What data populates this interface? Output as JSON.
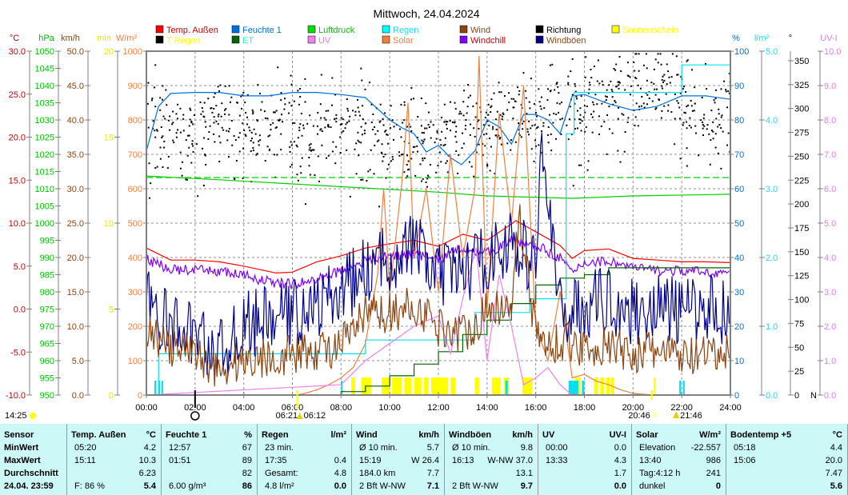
{
  "title": "Mittwoch, 24.04.2024",
  "legend": [
    {
      "label": "Temp. Außen",
      "box": "#ff0000",
      "text": "#cc0000"
    },
    {
      "label": "T Regen",
      "box": "#000000",
      "text": "#ffff00"
    },
    {
      "label": "Feuchte 1",
      "box": "#0070e0",
      "text": "#0070d0"
    },
    {
      "label": "ET",
      "box": "#006400",
      "text": "#30e0e0"
    },
    {
      "label": "Luftdruck",
      "box": "#00e000",
      "text": "#00c000"
    },
    {
      "label": "UV",
      "box": "#f080f0",
      "text": "#e080e0"
    },
    {
      "label": "Regen",
      "box": "#00ffff",
      "text": "#20d8e8"
    },
    {
      "label": "Solar",
      "box": "#f08040",
      "text": "#f08040"
    },
    {
      "label": "Wind",
      "box": "#8b4513",
      "text": "#8b4513"
    },
    {
      "label": "Windchill",
      "box": "#8000ff",
      "text": "#cc0000"
    },
    {
      "label": "Richtung",
      "box": "#000000",
      "text": "#000000"
    },
    {
      "label": "Windböen",
      "box": "#000080",
      "text": "#8b4513"
    },
    {
      "label": "Sonnenschein",
      "box": "#ffff00",
      "text": "#ffff00"
    }
  ],
  "chart_data": {
    "type": "line",
    "title": "Mittwoch, 24.04.2024",
    "x_ticks": [
      "00:00",
      "02:00",
      "04:00",
      "06:00",
      "08:00",
      "10:00",
      "12:00",
      "14:00",
      "16:00",
      "18:00",
      "20:00",
      "22:00",
      "24:00"
    ],
    "xlim_hours": [
      0,
      24
    ],
    "grid": true,
    "axes": {
      "temp": {
        "unit": "°C",
        "color": "#cc0000",
        "range": [
          -10,
          30
        ],
        "ticks": [
          "30.0",
          "25.0",
          "20.0",
          "15.0",
          "10.0",
          "5.0",
          "0.0",
          "-5.0",
          "-10.0"
        ]
      },
      "pressure": {
        "unit": "hPa",
        "color": "#00c000",
        "range": [
          950,
          1050
        ],
        "ticks": [
          "1050",
          "1045",
          "1040",
          "1035",
          "1030",
          "1025",
          "1020",
          "1015",
          "1010",
          "1005",
          "1000",
          "995",
          "990",
          "985",
          "980",
          "975",
          "970",
          "965",
          "960",
          "955",
          "950"
        ]
      },
      "wind": {
        "unit": "km/h",
        "color": "#8b4513",
        "range": [
          0,
          50
        ],
        "ticks": [
          "50.0",
          "45.0",
          "40.0",
          "35.0",
          "30.0",
          "25.0",
          "20.0",
          "15.0",
          "10.0",
          "5.0",
          "0.0"
        ]
      },
      "sunshine": {
        "unit": "min",
        "color": "#e8e800",
        "range": [
          0,
          20
        ],
        "ticks": [
          "20",
          "15",
          "10",
          "5",
          "0"
        ]
      },
      "solar": {
        "unit": "W/m²",
        "color": "#f08040",
        "range": [
          0,
          1000
        ],
        "ticks": [
          "1000",
          "900",
          "800",
          "700",
          "600",
          "500",
          "400",
          "300",
          "200",
          "100",
          "0"
        ]
      },
      "humidity": {
        "unit": "%",
        "color": "#0070d0",
        "range": [
          0,
          100
        ],
        "ticks": [
          "100",
          "90",
          "80",
          "70",
          "60",
          "50",
          "40",
          "30",
          "20",
          "10",
          "0"
        ]
      },
      "rain": {
        "unit": "l/m²",
        "color": "#20d8e8",
        "range": [
          0,
          5
        ],
        "ticks": [
          "5.0",
          "4.0",
          "3.0",
          "2.0",
          "1.0",
          "0.0"
        ]
      },
      "direction": {
        "unit": "°",
        "color": "#000000",
        "range": [
          0,
          360
        ],
        "ticks": [
          "350",
          "325",
          "300",
          "275",
          "250",
          "225",
          "200",
          "175",
          "150",
          "125",
          "100",
          "75",
          "50",
          "25",
          "0"
        ],
        "zero_label": "N"
      },
      "uv": {
        "unit": "UV-I",
        "color": "#e080e0",
        "range": [
          0,
          10
        ],
        "ticks": [
          "10.0",
          "9.0",
          "8.0",
          "7.0",
          "6.0",
          "5.0",
          "4.0",
          "3.0",
          "2.0",
          "1.0",
          "0.0"
        ]
      }
    },
    "series": [
      {
        "name": "Temp. Außen",
        "axis": "temp",
        "color": "#ff0000",
        "x": [
          0,
          1,
          2,
          3,
          4,
          5.33,
          6,
          7,
          8,
          9,
          10,
          11,
          12,
          13,
          14,
          15,
          15.18,
          16,
          17,
          17.5,
          18,
          19,
          20,
          21,
          22,
          23,
          24
        ],
        "values": [
          7.1,
          5.7,
          5.7,
          5.5,
          5.0,
          4.2,
          4.3,
          5.5,
          6.2,
          7.1,
          7.6,
          8.0,
          7.3,
          8.7,
          8.0,
          9.9,
          10.3,
          9.0,
          7.4,
          5.9,
          6.8,
          7.0,
          5.9,
          5.7,
          5.5,
          5.5,
          5.4
        ]
      },
      {
        "name": "Windchill",
        "axis": "temp",
        "color": "#8000ff",
        "noise": 0.6,
        "x": [
          0,
          1,
          2,
          3,
          4,
          5.33,
          6,
          7,
          8,
          9,
          10,
          11,
          12,
          13,
          14,
          15,
          16,
          17,
          17.5,
          18,
          19,
          20,
          21,
          22,
          23,
          24
        ],
        "values": [
          5.8,
          4.6,
          4.5,
          4.4,
          3.9,
          3.0,
          2.9,
          3.4,
          4.5,
          5.6,
          6.2,
          6.4,
          5.8,
          7.2,
          6.5,
          8.0,
          7.4,
          6.0,
          4.2,
          5.4,
          5.6,
          4.8,
          4.5,
          4.4,
          4.3,
          4.2
        ]
      },
      {
        "name": "Feuchte 1",
        "axis": "humidity",
        "color": "#0070e0",
        "x": [
          0,
          0.5,
          1,
          2,
          3,
          4,
          5,
          6,
          7,
          8,
          9,
          10,
          10.5,
          11,
          11.5,
          12,
          12.5,
          12.95,
          13.5,
          14,
          14.5,
          15,
          15.5,
          16,
          16.5,
          17,
          17.5,
          18,
          19,
          20,
          21,
          22,
          23,
          24
        ],
        "values": [
          71,
          84,
          87.7,
          88,
          88,
          87,
          87,
          88,
          88,
          87.4,
          86.5,
          80,
          77.7,
          76,
          70.7,
          72.6,
          69,
          67,
          71,
          80,
          78,
          73,
          81.6,
          81.6,
          80,
          76,
          87,
          87.4,
          84.7,
          82.8,
          84,
          87,
          87,
          86
        ]
      },
      {
        "name": "Luftdruck",
        "axis": "pressure",
        "color": "#00d000",
        "x": [
          0,
          3,
          6,
          9,
          12,
          14,
          17.5,
          20,
          24
        ],
        "values": [
          1013.7,
          1012.6,
          1011.4,
          1010.2,
          1009.0,
          1007.9,
          1007.2,
          1007.9,
          1008.4
        ]
      },
      {
        "name": "Luftdruck Referenz",
        "axis": "pressure",
        "color": "#00d000",
        "dashed": true,
        "x": [
          0,
          24
        ],
        "values": [
          1013.25,
          1013.25
        ]
      },
      {
        "name": "Regen",
        "axis": "rain",
        "color": "#00e0f0",
        "step": true,
        "x": [
          0,
          0.5,
          9,
          13.5,
          15.75,
          17.25,
          17.58,
          22,
          24
        ],
        "values": [
          0,
          0.6,
          0.8,
          1.2,
          1.4,
          3.8,
          4.4,
          4.8,
          4.8
        ]
      },
      {
        "name": "ET",
        "axis": "rain",
        "color": "#006400",
        "step": true,
        "x": [
          0,
          8,
          9,
          10,
          11,
          12,
          13,
          14,
          15,
          16,
          17,
          18,
          19,
          24
        ],
        "values": [
          0,
          0.05,
          0.13,
          0.28,
          0.45,
          0.63,
          0.88,
          1.09,
          1.33,
          1.6,
          1.7,
          1.75,
          1.85,
          1.88
        ]
      },
      {
        "name": "Solar",
        "axis": "solar",
        "color": "#f08040",
        "x": [
          0,
          6.2,
          6.5,
          7,
          7.5,
          8,
          8.5,
          9,
          9.5,
          9.75,
          10,
          10.5,
          10.75,
          11,
          11.5,
          12,
          12.5,
          13,
          13.5,
          13.67,
          14,
          14.5,
          15,
          15.5,
          16,
          16.5,
          17,
          17.5,
          18,
          18.5,
          19,
          19.5,
          20,
          20.77,
          24
        ],
        "values": [
          0,
          0,
          5,
          15,
          30,
          50,
          80,
          150,
          350,
          600,
          300,
          620,
          850,
          400,
          600,
          300,
          700,
          400,
          600,
          986,
          250,
          820,
          500,
          900,
          200,
          100,
          300,
          50,
          60,
          40,
          30,
          15,
          5,
          0,
          0
        ]
      },
      {
        "name": "UV",
        "axis": "uv",
        "color": "#f080f0",
        "x": [
          0,
          8,
          9,
          10,
          11,
          12,
          12.5,
          13,
          13.55,
          14,
          14.5,
          15,
          15.5,
          16,
          16.5,
          17,
          17.5,
          24
        ],
        "values": [
          0,
          0.3,
          1.0,
          1.5,
          2.0,
          2.3,
          1.2,
          2.8,
          4.3,
          1.0,
          3.5,
          2.0,
          0.3,
          0.5,
          0.8,
          0.3,
          0,
          0
        ]
      },
      {
        "name": "Windböen",
        "axis": "wind",
        "color": "#000090",
        "noise": 5,
        "x": [
          0,
          1,
          2,
          3,
          4,
          5,
          6,
          7,
          8,
          9,
          10,
          11,
          12,
          13,
          14,
          15,
          16,
          16.22,
          17,
          18,
          19,
          20,
          21,
          22,
          23,
          24
        ],
        "values": [
          13.6,
          9.8,
          9,
          6,
          10,
          11,
          12,
          13,
          15,
          18,
          20,
          22,
          17,
          18,
          20,
          22,
          19,
          37.0,
          12,
          13,
          14,
          12,
          13,
          12,
          13,
          12
        ]
      },
      {
        "name": "Wind",
        "axis": "wind",
        "color": "#8b4513",
        "noise": 3,
        "x": [
          0,
          1,
          2,
          3,
          4,
          5,
          6,
          7,
          8,
          9,
          10,
          11,
          12,
          13,
          14,
          15,
          15.32,
          16,
          16.5,
          17,
          18,
          19,
          20,
          21,
          22,
          23,
          24
        ],
        "values": [
          9.8,
          6.6,
          6,
          3.6,
          5,
          5.5,
          6,
          6.5,
          7,
          11.7,
          12,
          13,
          10,
          9,
          12,
          14,
          26.4,
          9,
          7,
          8,
          7,
          7,
          6,
          6.5,
          5.5,
          5.5,
          6
        ]
      }
    ],
    "direction_hourly_mean_deg": [
      285,
      280,
      285,
      290,
      285,
      280,
      275,
      280,
      285,
      275,
      270,
      265,
      275,
      280,
      285,
      290,
      295,
      300,
      310,
      320,
      325,
      320,
      300,
      290,
      280
    ],
    "sunshine_intervals_h": [
      [
        8.42,
        8.58
      ],
      [
        8.83,
        9.25
      ],
      [
        9.67,
        10.0
      ],
      [
        10.1,
        10.5
      ],
      [
        10.6,
        10.9
      ],
      [
        11.0,
        11.3
      ],
      [
        11.4,
        11.6
      ],
      [
        11.7,
        12.4
      ],
      [
        12.5,
        12.7
      ],
      [
        13.5,
        13.67
      ],
      [
        14.2,
        14.55
      ],
      [
        14.7,
        14.9
      ],
      [
        15.45,
        15.85
      ],
      [
        17.6,
        17.85
      ],
      [
        18.4,
        18.55
      ],
      [
        18.65,
        18.8
      ],
      [
        18.9,
        19.05
      ],
      [
        19.1,
        19.2
      ],
      [
        20.85,
        20.9
      ]
    ],
    "rain_event_intervals_h": [
      [
        0.33,
        0.4
      ],
      [
        0.5,
        0.55
      ],
      [
        0.62,
        0.68
      ],
      [
        8.0,
        8.05
      ],
      [
        14.75,
        14.85
      ],
      [
        17.35,
        17.75
      ],
      [
        17.9,
        18.0
      ],
      [
        21.9,
        21.97
      ],
      [
        22.05,
        22.12
      ]
    ]
  },
  "astro": {
    "sunshine_total": "14:25",
    "moon_phase_time_label": "",
    "moonset": "06:21",
    "sunrise": "06:12",
    "sunset": "20:46",
    "moonrise": "21:46"
  },
  "stats": {
    "columns": [
      {
        "header": [
          "Sensor",
          ""
        ],
        "rows": [
          [
            "MinWert",
            ""
          ],
          [
            "MaxWert",
            ""
          ],
          [
            "Durchschnitt",
            ""
          ],
          [
            "24.04. 23:59",
            ""
          ]
        ],
        "sensor": true
      },
      {
        "header": [
          "Temp. Außen",
          "°C"
        ],
        "rows": [
          [
            "05:20",
            "4.2"
          ],
          [
            "15:11",
            "10.3"
          ],
          [
            "",
            "6.23"
          ],
          [
            "F: 86 %",
            "5.4"
          ]
        ]
      },
      {
        "header": [
          "Feuchte 1",
          "%"
        ],
        "rows": [
          [
            "12:57",
            "67"
          ],
          [
            "01:51",
            "89"
          ],
          [
            "",
            "82"
          ],
          [
            "6.00 g/m³",
            "86"
          ]
        ]
      },
      {
        "header": [
          "Regen",
          "l/m²"
        ],
        "rows": [
          [
            "23 min.",
            ""
          ],
          [
            "17:35",
            "0.4"
          ],
          [
            "Gesamt:",
            "4.8"
          ],
          [
            "4.8 l/m²",
            "0.0"
          ]
        ]
      },
      {
        "header": [
          "Wind",
          "km/h"
        ],
        "rows": [
          [
            "Ø 10 min.",
            "5.7"
          ],
          [
            "15:19",
            "W 26.4"
          ],
          [
            "184.0 km",
            "7.7"
          ],
          [
            "2 Bft W-NW",
            "7.1"
          ]
        ]
      },
      {
        "header": [
          "Windböen",
          "km/h"
        ],
        "rows": [
          [
            "Ø 10 min.",
            "9.8"
          ],
          [
            "16:13",
            "W-NW 37.0"
          ],
          [
            "",
            "13.1"
          ],
          [
            "2 Bft W-NW",
            "9.7"
          ]
        ]
      },
      {
        "header": [
          "UV",
          "UV-I"
        ],
        "rows": [
          [
            "00:00",
            "0.0"
          ],
          [
            "13:33",
            "4.3"
          ],
          [
            "",
            "1.7"
          ],
          [
            "",
            "0.0"
          ]
        ]
      },
      {
        "header": [
          "Solar",
          "W/m²"
        ],
        "rows": [
          [
            "Elevation",
            "-22.557"
          ],
          [
            "13:40",
            "986"
          ],
          [
            "Tag:4:12 h",
            "241"
          ],
          [
            "dunkel",
            "0"
          ]
        ]
      },
      {
        "header": [
          "Bodentemp +5",
          "°C"
        ],
        "rows": [
          [
            "05:18",
            "4.4"
          ],
          [
            "15:06",
            "20.0"
          ],
          [
            "",
            "7.47"
          ],
          [
            "",
            "5.6"
          ]
        ]
      }
    ]
  }
}
